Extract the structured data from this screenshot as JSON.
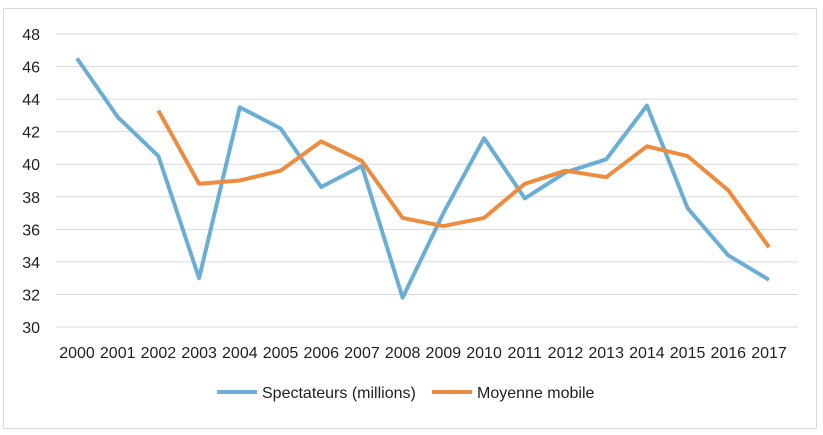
{
  "chart_data": {
    "type": "line",
    "title": "",
    "xlabel": "",
    "ylabel": "",
    "categories": [
      "2000",
      "2001",
      "2002",
      "2003",
      "2004",
      "2005",
      "2006",
      "2007",
      "2008",
      "2009",
      "2010",
      "2011",
      "2012",
      "2013",
      "2014",
      "2015",
      "2016",
      "2017"
    ],
    "y_ticks": [
      30,
      32,
      34,
      36,
      38,
      40,
      42,
      44,
      46,
      48
    ],
    "ylim": [
      30,
      48
    ],
    "grid": true,
    "legend_position": "bottom",
    "series": [
      {
        "name": "Spectateurs (millions)",
        "color": "#6aaed6",
        "values": [
          46.5,
          42.9,
          40.5,
          33.0,
          43.5,
          42.2,
          38.6,
          39.9,
          31.8,
          37.0,
          41.6,
          37.9,
          39.5,
          40.3,
          43.6,
          37.3,
          34.4,
          32.9
        ]
      },
      {
        "name": "Moyenne mobile",
        "color": "#ed8b3f",
        "values": [
          null,
          null,
          43.3,
          38.8,
          39.0,
          39.6,
          41.4,
          40.2,
          36.7,
          36.2,
          36.7,
          38.8,
          39.6,
          39.2,
          41.1,
          40.5,
          38.4,
          34.9
        ]
      }
    ]
  }
}
